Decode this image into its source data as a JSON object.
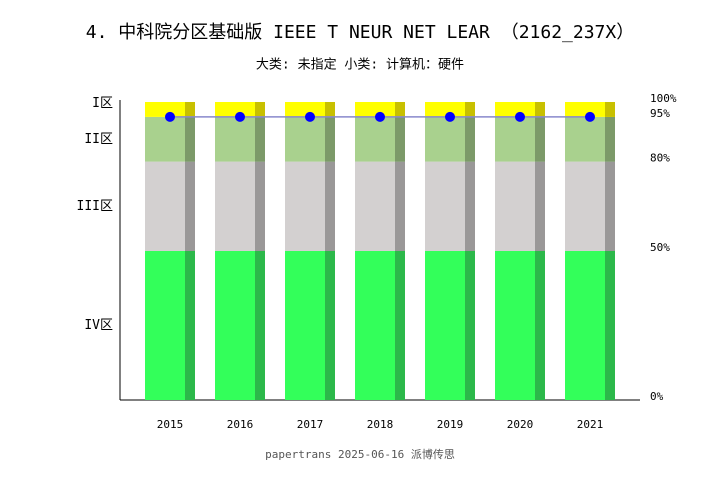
{
  "chart_data": {
    "type": "stacked-bar",
    "title": "4. 中科院分区基础版 IEEE T NEUR NET LEAR （2162_237X）",
    "subtitle": "大类: 未指定 小类: 计算机：硬件",
    "footer": "papertrans 2025-06-16 派博传思",
    "categories": [
      "2015",
      "2016",
      "2017",
      "2018",
      "2019",
      "2020",
      "2021"
    ],
    "series": [
      {
        "name": "IV区",
        "color": "#33ff5a",
        "side_color": "#2cb84a",
        "values": [
          50,
          50,
          50,
          50,
          50,
          50,
          50
        ]
      },
      {
        "name": "III区",
        "color": "#d3d0d0",
        "side_color": "#9a9898",
        "values": [
          30,
          30,
          30,
          30,
          30,
          30,
          30
        ]
      },
      {
        "name": "II区",
        "color": "#a9d18e",
        "side_color": "#7c9a69",
        "values": [
          15,
          15,
          15,
          15,
          15,
          15,
          15
        ]
      },
      {
        "name": "I区",
        "color": "#ffff00",
        "side_color": "#c8c000",
        "values": [
          5,
          5,
          5,
          5,
          5,
          5,
          5
        ]
      }
    ],
    "points": {
      "color": "#0000ff",
      "line_color": "#8888cc",
      "values": [
        95,
        95,
        95,
        95,
        95,
        95,
        95
      ]
    },
    "ylim": [
      0,
      100
    ],
    "yticks": [
      {
        "value": 0,
        "label": "0%"
      },
      {
        "value": 50,
        "label": "50%"
      },
      {
        "value": 80,
        "label": "80%"
      },
      {
        "value": 95,
        "label": "95%"
      },
      {
        "value": 100,
        "label": "100%"
      }
    ]
  }
}
